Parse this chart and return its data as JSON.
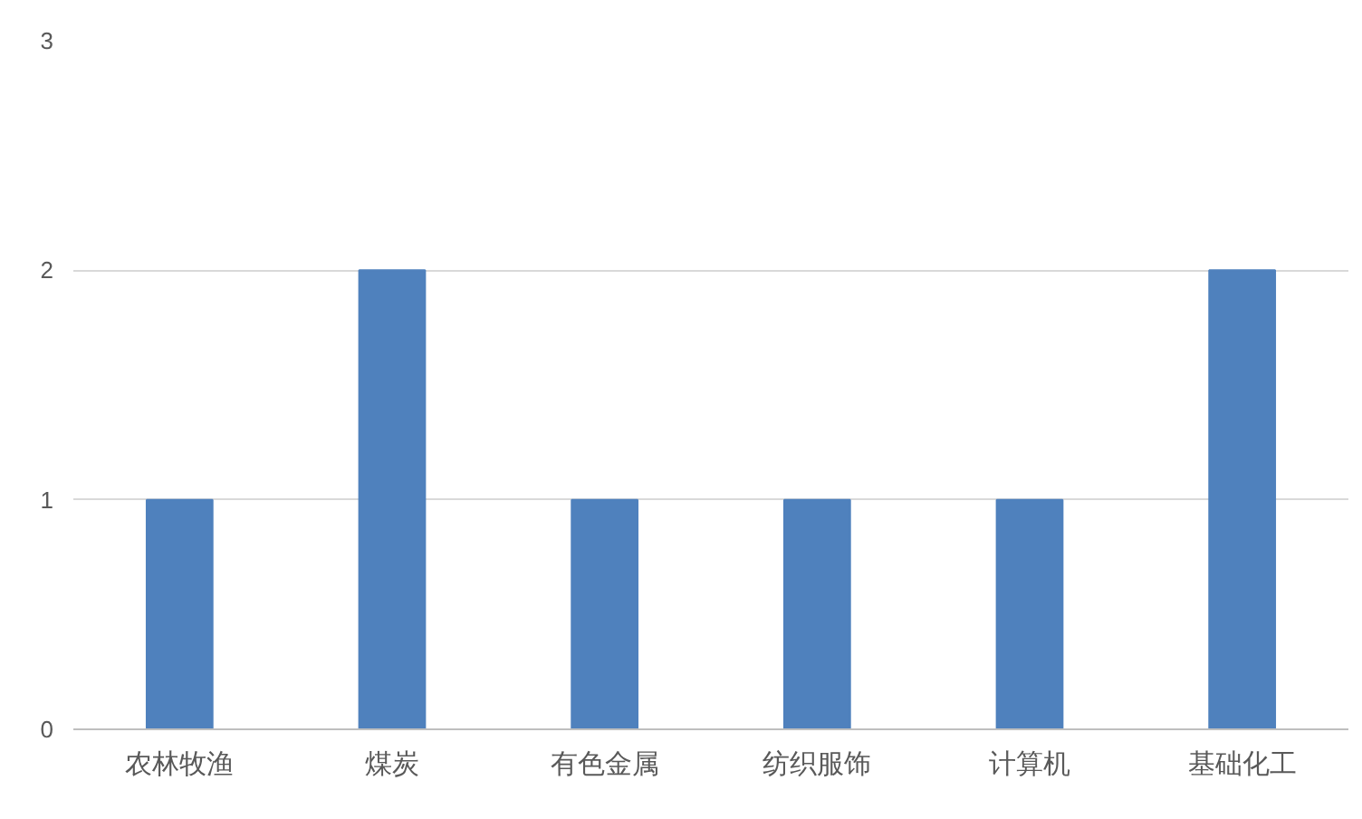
{
  "chart_data": {
    "type": "bar",
    "categories": [
      "农林牧渔",
      "煤炭",
      "有色金属",
      "纺织服饰",
      "计算机",
      "基础化工"
    ],
    "values": [
      1,
      2,
      1,
      1,
      1,
      2
    ],
    "color": "#4f81bd",
    "ylim": [
      0,
      3
    ],
    "yticks": [
      0,
      1,
      2,
      3
    ],
    "grid": "y"
  }
}
